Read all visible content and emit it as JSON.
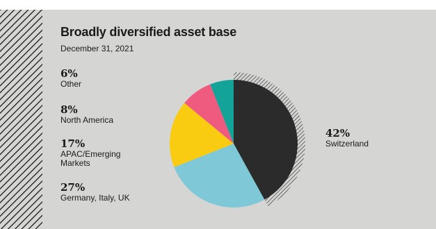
{
  "title": "Broadly diversified asset base",
  "subtitle": "December 31, 2021",
  "chart_data": {
    "type": "pie",
    "title": "Broadly diversified asset base",
    "subtitle": "December 31, 2021",
    "slices": [
      {
        "label": "Switzerland",
        "value": 42,
        "display": "42%",
        "color": "#2b2b2b",
        "highlighted": true
      },
      {
        "label": "Germany, Italy, UK",
        "value": 27,
        "display": "27%",
        "color": "#7ec8d8"
      },
      {
        "label": "APAC / Emerging Markets",
        "value": 17,
        "display": "17%",
        "color": "#f9cc12"
      },
      {
        "label": "North America",
        "value": 8,
        "display": "8%",
        "color": "#ee5b7e"
      },
      {
        "label": "Other",
        "value": 6,
        "display": "6%",
        "color": "#14a398"
      }
    ]
  },
  "stats": {
    "other": {
      "pct": "6%",
      "label": "Other"
    },
    "north_america": {
      "pct": "8%",
      "label": "North America"
    },
    "apac": {
      "pct": "17%",
      "label": "APAC/Emerging Markets"
    },
    "europe": {
      "pct": "27%",
      "label": "Germany, Italy, UK"
    },
    "switzerland": {
      "pct": "42%",
      "label": "Switzerland"
    }
  }
}
